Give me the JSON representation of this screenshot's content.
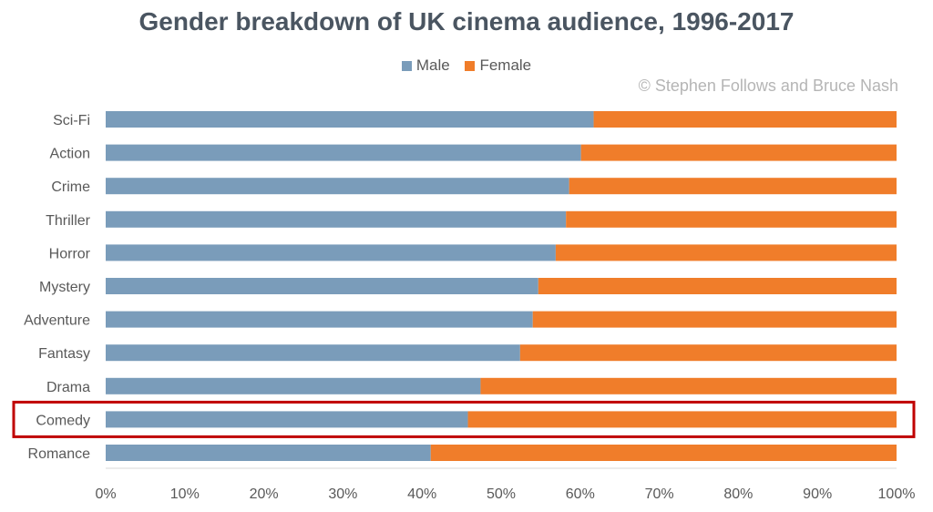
{
  "chart_data": {
    "type": "bar",
    "orientation": "horizontal",
    "stacked": "100%",
    "title": "Gender breakdown of UK cinema audience, 1996-2017",
    "credit": "© Stephen Follows and Bruce Nash",
    "categories": [
      "Sci-Fi",
      "Action",
      "Crime",
      "Thriller",
      "Horror",
      "Mystery",
      "Adventure",
      "Fantasy",
      "Drama",
      "Comedy",
      "Romance"
    ],
    "series": [
      {
        "name": "Male",
        "color": "#7a9cba",
        "values": [
          61.7,
          60.1,
          58.6,
          58.2,
          56.9,
          54.7,
          54.0,
          52.4,
          47.4,
          45.8,
          41.1
        ]
      },
      {
        "name": "Female",
        "color": "#f07d2a",
        "values": [
          38.3,
          39.9,
          41.4,
          41.8,
          43.1,
          45.3,
          46.0,
          47.6,
          52.6,
          54.2,
          58.9
        ]
      }
    ],
    "xlim": [
      0,
      100
    ],
    "x_ticks": [
      "0%",
      "10%",
      "20%",
      "30%",
      "40%",
      "50%",
      "60%",
      "70%",
      "80%",
      "90%",
      "100%"
    ],
    "legend_position": "top-center",
    "highlighted_category": "Comedy",
    "highlight_color": "#c00000",
    "grid": false
  }
}
